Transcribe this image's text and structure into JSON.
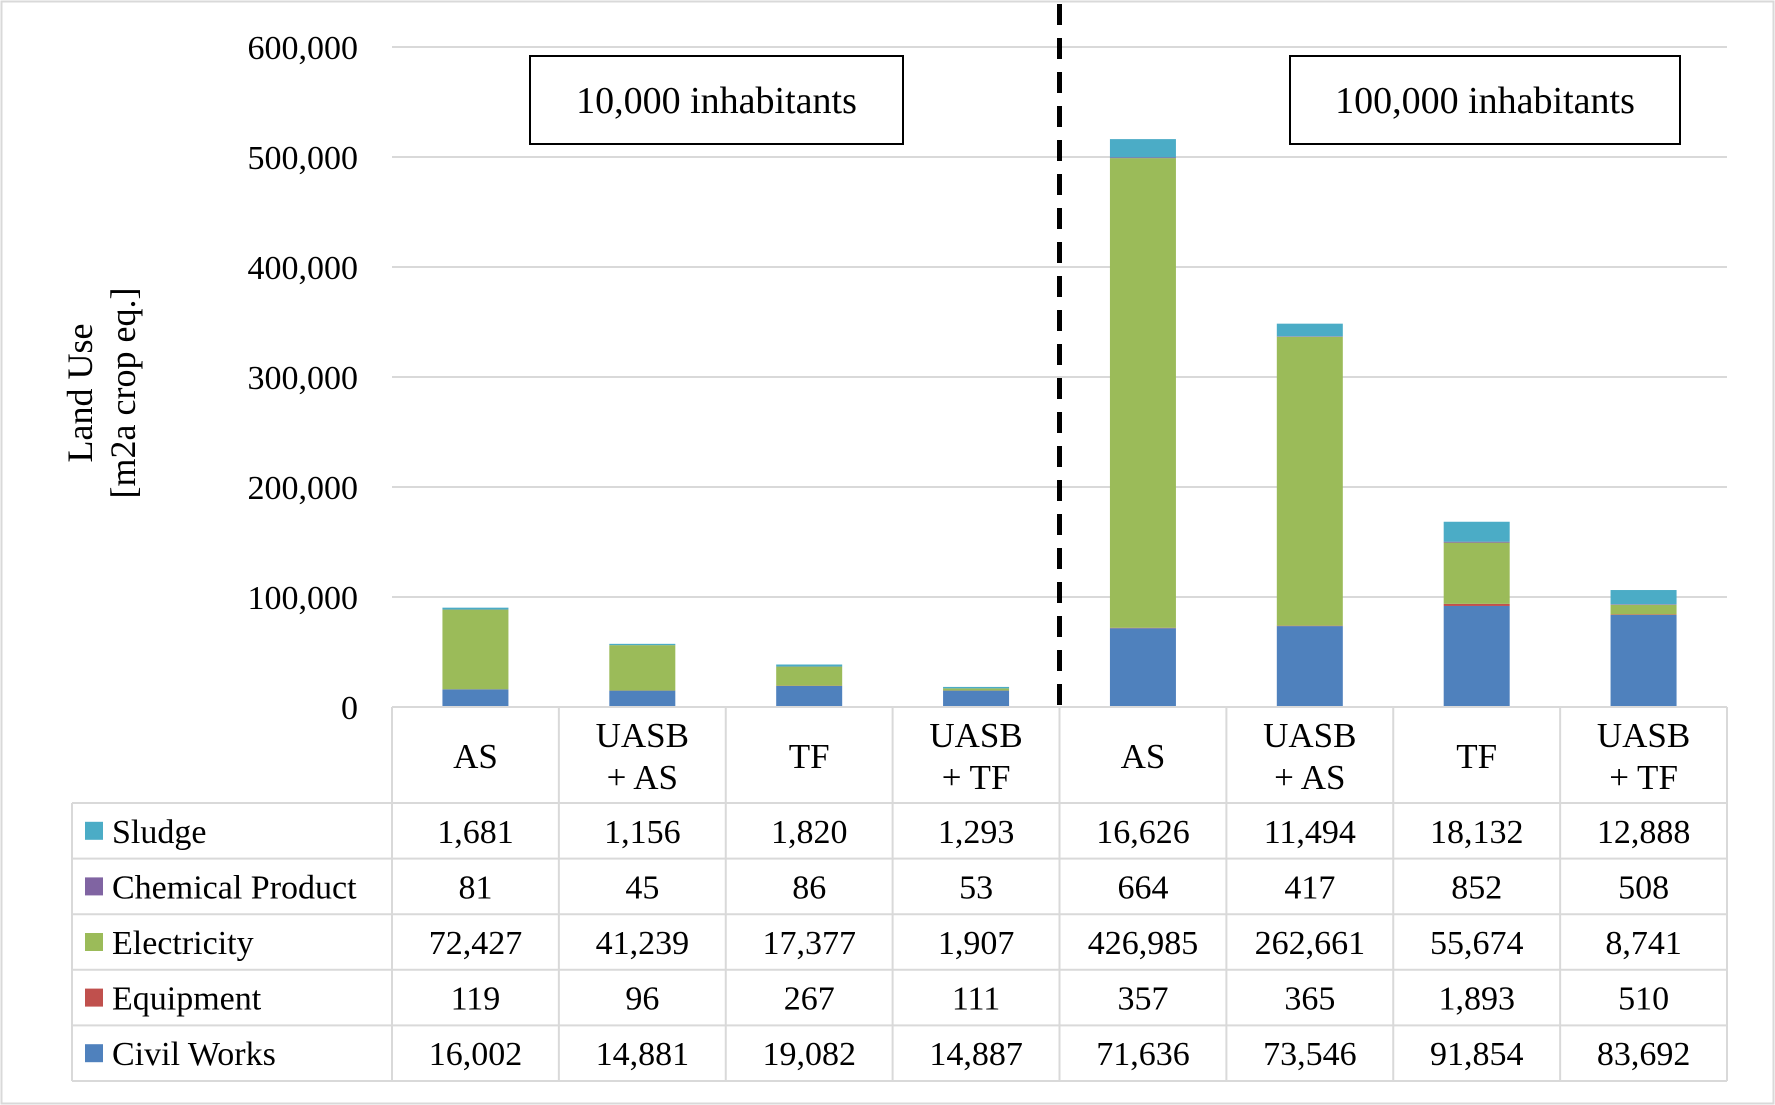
{
  "chart_data": {
    "type": "bar",
    "stacked": true,
    "ylabel_lines": [
      "Land Use",
      "[m2a crop eq.]"
    ],
    "ylim": [
      0,
      600000
    ],
    "yticks": [
      0,
      100000,
      200000,
      300000,
      400000,
      500000,
      600000
    ],
    "ytick_labels": [
      "0",
      "100,000",
      "200,000",
      "300,000",
      "400,000",
      "500,000",
      "600,000"
    ],
    "grid": true,
    "groups": [
      "10,000 inhabitants",
      "100,000 inhabitants"
    ],
    "categories": [
      [
        "AS"
      ],
      [
        "UASB",
        "+ AS"
      ],
      [
        "TF"
      ],
      [
        "UASB",
        "+ TF"
      ],
      [
        "AS"
      ],
      [
        "UASB",
        "+ AS"
      ],
      [
        "TF"
      ],
      [
        "UASB",
        "+ TF"
      ]
    ],
    "series": [
      {
        "name": "Civil Works",
        "color": "#4f81bd",
        "values": [
          16002,
          14881,
          19082,
          14887,
          71636,
          73546,
          91854,
          83692
        ],
        "labels": [
          "16,002",
          "14,881",
          "19,082",
          "14,887",
          "71,636",
          "73,546",
          "91,854",
          "83,692"
        ]
      },
      {
        "name": "Equipment",
        "color": "#c0504d",
        "values": [
          119,
          96,
          267,
          111,
          357,
          365,
          1893,
          510
        ],
        "labels": [
          "119",
          "96",
          "267",
          "111",
          "357",
          "365",
          "1,893",
          "510"
        ]
      },
      {
        "name": "Electricity",
        "color": "#9bbb59",
        "values": [
          72427,
          41239,
          17377,
          1907,
          426985,
          262661,
          55674,
          8741
        ],
        "labels": [
          "72,427",
          "41,239",
          "17,377",
          "1,907",
          "426,985",
          "262,661",
          "55,674",
          "8,741"
        ]
      },
      {
        "name": "Chemical Product",
        "color": "#8064a2",
        "values": [
          81,
          45,
          86,
          53,
          664,
          417,
          852,
          508
        ],
        "labels": [
          "81",
          "45",
          "86",
          "53",
          "664",
          "417",
          "852",
          "508"
        ]
      },
      {
        "name": "Sludge",
        "color": "#4bacc6",
        "values": [
          1681,
          1156,
          1820,
          1293,
          16626,
          11494,
          18132,
          12888
        ],
        "labels": [
          "1,681",
          "1,156",
          "1,820",
          "1,293",
          "16,626",
          "11,494",
          "18,132",
          "12,888"
        ]
      }
    ],
    "table_row_order": [
      "Sludge",
      "Chemical Product",
      "Electricity",
      "Equipment",
      "Civil Works"
    ]
  }
}
